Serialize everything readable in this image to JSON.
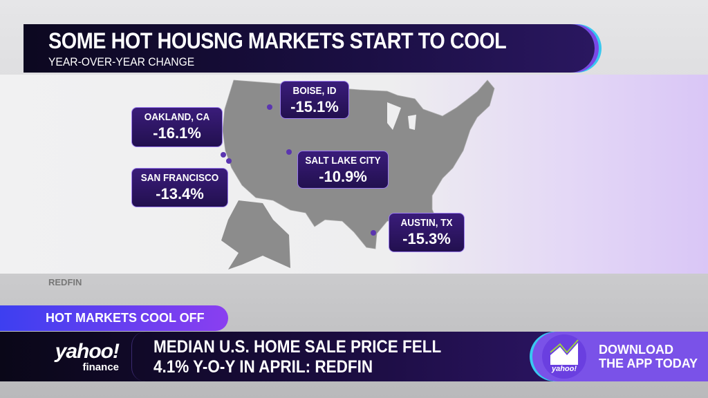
{
  "header": {
    "title": "SOME HOT HOUSNG MARKETS START TO COOL",
    "subtitle": "YEAR-OVER-YEAR CHANGE"
  },
  "map": {
    "region": "United States",
    "land_color": "#8c8c8c",
    "markers": [
      {
        "name": "OAKLAND, CA",
        "value": "-16.1%"
      },
      {
        "name": "BOISE, ID",
        "value": "-15.1%"
      },
      {
        "name": "SALT LAKE CITY",
        "value": "-10.9%"
      },
      {
        "name": "SAN FRANCISCO",
        "value": "-13.4%"
      },
      {
        "name": "AUSTIN, TX",
        "value": "-15.3%"
      }
    ]
  },
  "source": "REDFIN",
  "lower_third": {
    "tag": "HOT MARKETS COOL OFF",
    "headline_line1": "MEDIAN U.S. HOME SALE PRICE FELL",
    "headline_line2": "4.1% Y-O-Y IN APRIL: REDFIN"
  },
  "logo": {
    "brand": "yahoo!",
    "sub": "finance"
  },
  "promo": {
    "line1": "DOWNLOAD",
    "line2": "THE APP TODAY",
    "icon_brand": "yahoo!"
  },
  "colors": {
    "accent": "#7a52e8",
    "label_bg": "#2c1563",
    "cyan": "#38c8f0"
  }
}
